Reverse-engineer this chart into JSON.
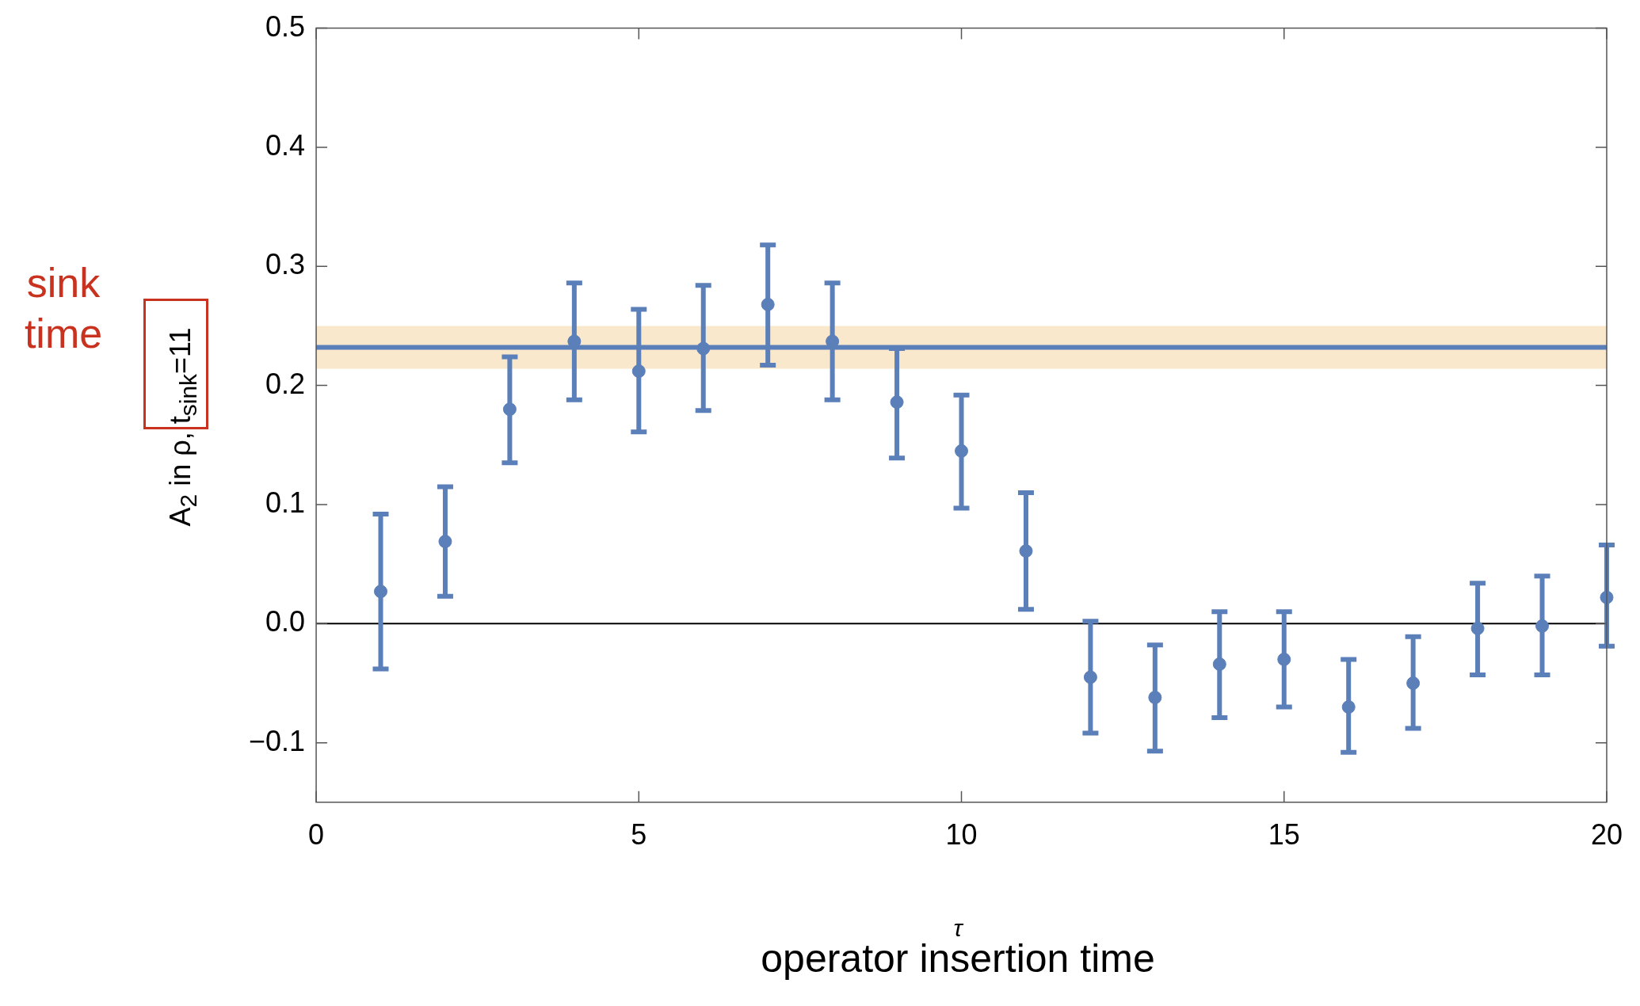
{
  "chart_data": {
    "type": "scatter",
    "xlabel": "τ",
    "ylabel": "A$_{2}$ in ρ, t$_{sink}$=11",
    "annotations": [
      "sink time",
      "operator insertion time"
    ],
    "x": [
      1,
      2,
      3,
      4,
      5,
      6,
      7,
      8,
      9,
      10,
      11,
      12,
      13,
      14,
      15,
      16,
      17,
      18,
      19,
      20
    ],
    "series": [
      {
        "color": "#5b7fb9",
        "values": [
          0.027,
          0.069,
          0.18,
          0.237,
          0.212,
          0.231,
          0.268,
          0.237,
          0.186,
          0.145,
          0.061,
          -0.045,
          -0.062,
          -0.034,
          -0.03,
          -0.07,
          -0.05,
          -0.004,
          -0.002,
          0.022
        ],
        "errors": [
          [
            -0.038,
            0.092
          ],
          [
            0.023,
            0.115
          ],
          [
            0.135,
            0.224
          ],
          [
            0.188,
            0.286
          ],
          [
            0.161,
            0.264
          ],
          [
            0.179,
            0.284
          ],
          [
            0.217,
            0.318
          ],
          [
            0.188,
            0.286
          ],
          [
            0.139,
            0.231
          ],
          [
            0.097,
            0.192
          ],
          [
            0.012,
            0.11
          ],
          [
            -0.092,
            0.002
          ],
          [
            -0.107,
            -0.018
          ],
          [
            -0.079,
            0.01
          ],
          [
            -0.07,
            0.01
          ],
          [
            -0.108,
            -0.03
          ],
          [
            -0.088,
            -0.011
          ],
          [
            -0.043,
            0.034
          ],
          [
            -0.043,
            0.04
          ],
          [
            -0.019,
            0.066
          ]
        ]
      }
    ],
    "xlim": [
      0,
      20
    ],
    "xticks": [
      0,
      5,
      10,
      15,
      20
    ],
    "ylim": [
      -0.15,
      0.5
    ],
    "yticks": [
      {
        "value": -0.1,
        "label": "−0.1"
      },
      {
        "value": 0,
        "label": "0.0"
      },
      0.1,
      0.2,
      0.3,
      0.4,
      0.5
    ],
    "bands": [
      {
        "axis": "y",
        "from": 0.214,
        "to": 0.25,
        "color": "#f9e8cc"
      }
    ],
    "ref_lines": [
      {
        "axis": "y",
        "value": 0,
        "color": "#000000"
      },
      {
        "axis": "y",
        "value": 0.232,
        "color": "#5b7fb9"
      }
    ],
    "marker": "circle",
    "grid": false,
    "legend": false
  }
}
